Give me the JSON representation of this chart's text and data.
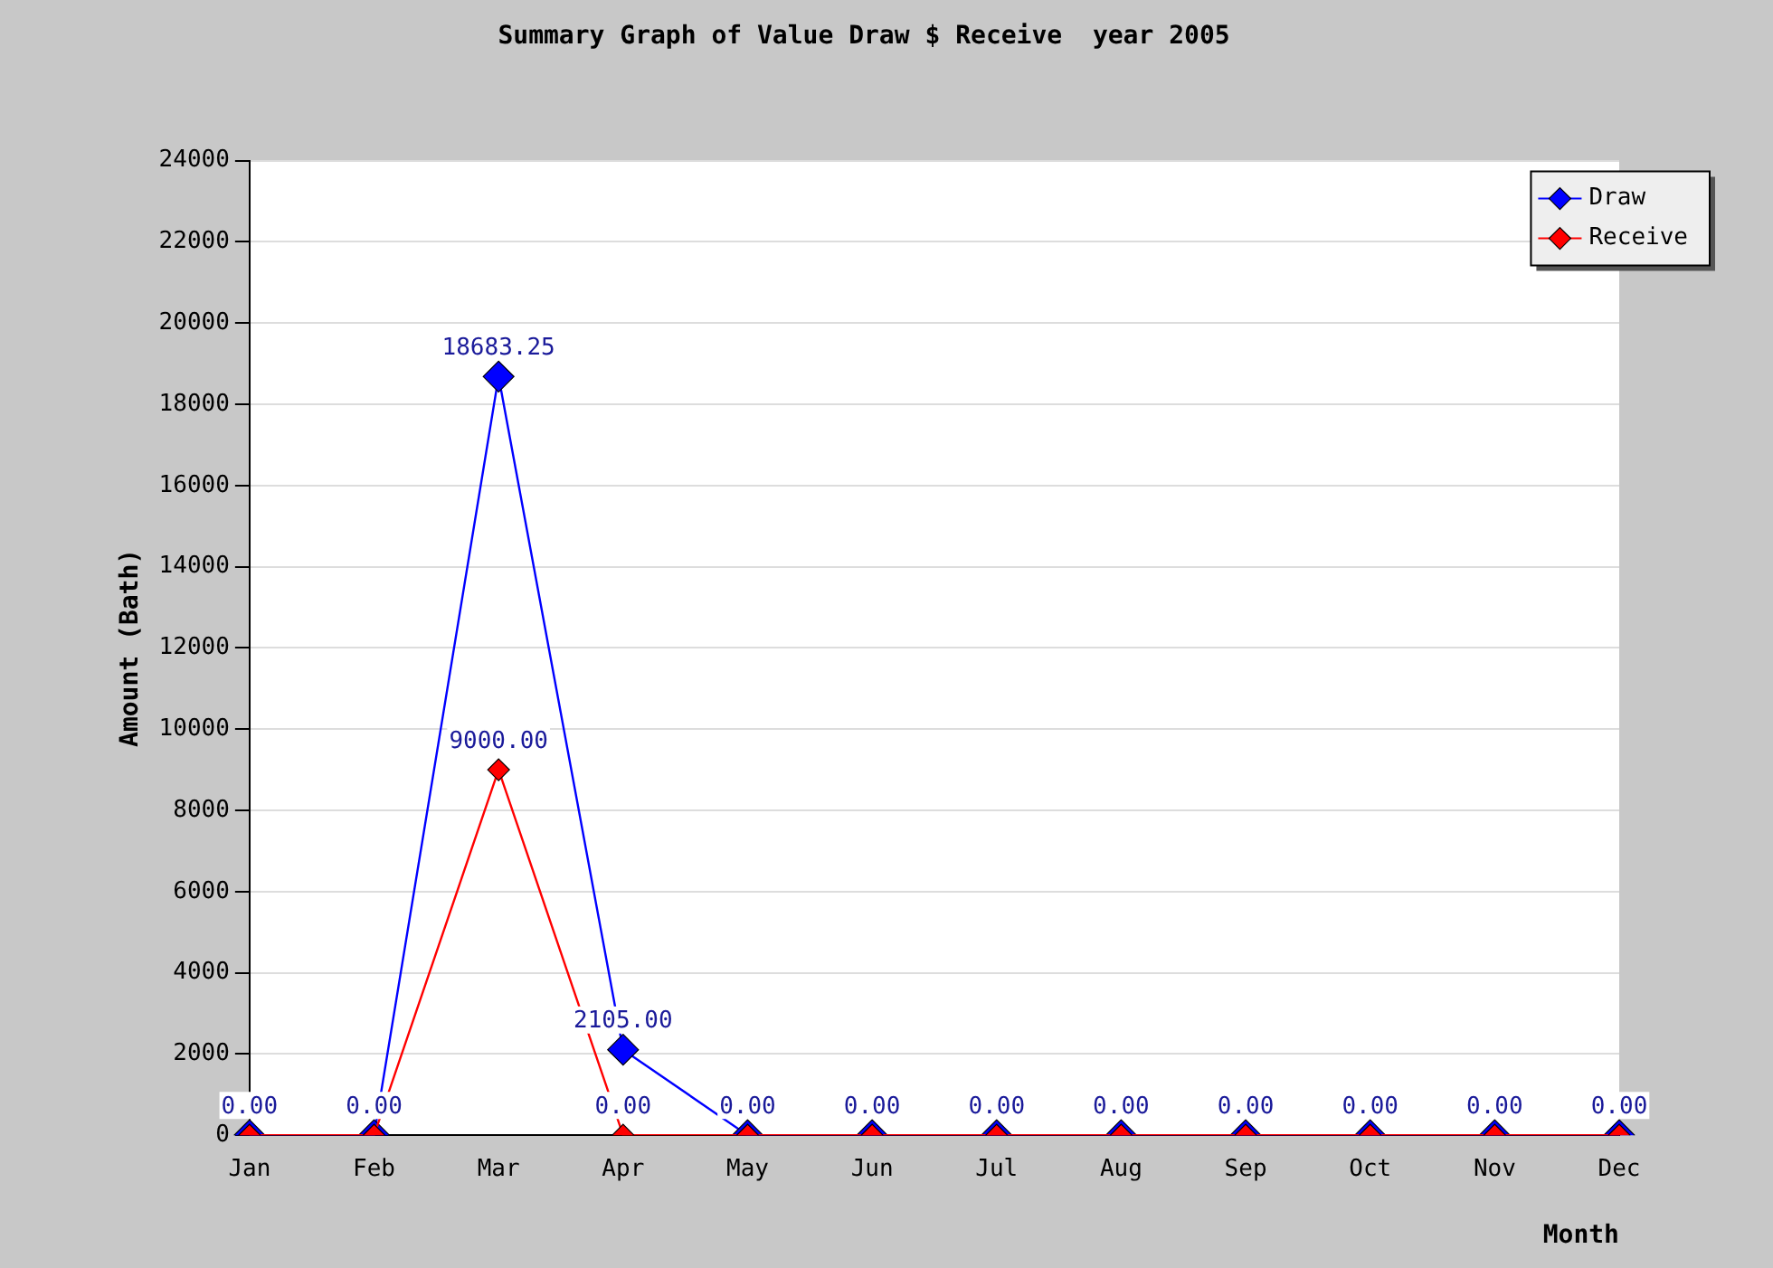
{
  "chart_data": {
    "type": "line",
    "title": "Summary Graph of Value Draw $ Receive  year 2005",
    "xlabel": "Month",
    "ylabel": "Amount (Bath)",
    "categories": [
      "Jan",
      "Feb",
      "Mar",
      "Apr",
      "May",
      "Jun",
      "Jul",
      "Aug",
      "Sep",
      "Oct",
      "Nov",
      "Dec"
    ],
    "series": [
      {
        "name": "Draw",
        "color": "#0000ff",
        "values": [
          0,
          0,
          18683.25,
          2105,
          0,
          0,
          0,
          0,
          0,
          0,
          0,
          0
        ],
        "value_labels": [
          "0.00",
          "0.00",
          "18683.25",
          "2105.00",
          "0.00",
          "0.00",
          "0.00",
          "0.00",
          "0.00",
          "0.00",
          "0.00",
          "0.00"
        ]
      },
      {
        "name": "Receive",
        "color": "#ff0000",
        "values": [
          0,
          0,
          9000,
          0,
          0,
          0,
          0,
          0,
          0,
          0,
          0,
          0
        ],
        "value_labels": [
          null,
          null,
          "9000.00",
          "0.00",
          null,
          null,
          null,
          null,
          null,
          null,
          null,
          null
        ]
      }
    ],
    "ylim": [
      0,
      24000
    ],
    "yticks": [
      0,
      2000,
      4000,
      6000,
      8000,
      10000,
      12000,
      14000,
      16000,
      18000,
      20000,
      22000,
      24000
    ],
    "grid": "y",
    "legend": "top right",
    "marker": "diamond",
    "line_style": "solid"
  }
}
